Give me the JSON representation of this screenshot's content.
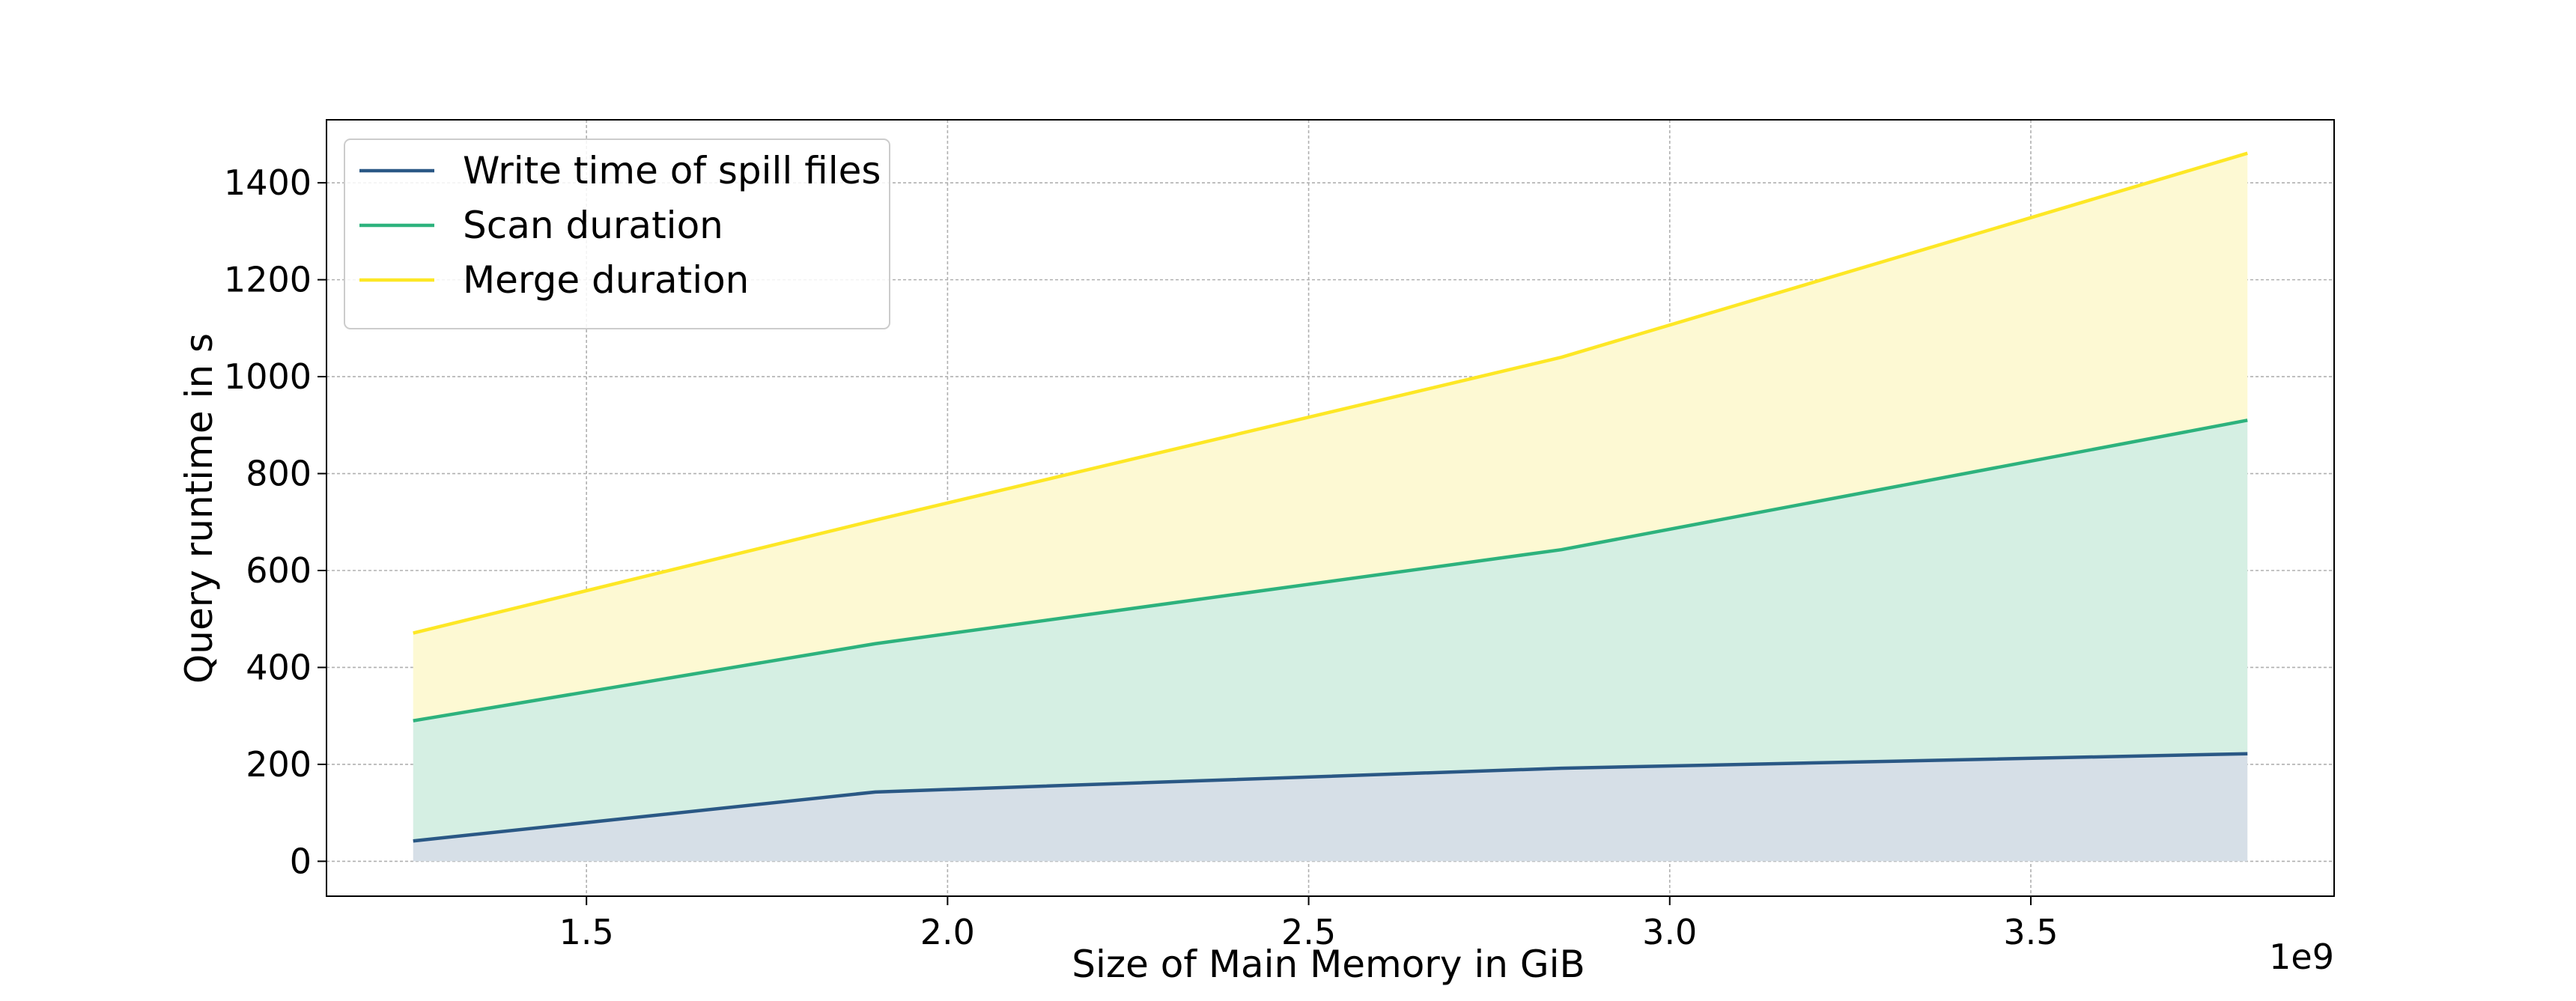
{
  "chart_data": {
    "type": "area",
    "stacked": true,
    "xlabel": "Size of Main Memory in GiB",
    "ylabel": "Query runtime in s",
    "x_offset_label": "1e9",
    "xlim": [
      1.14,
      3.92
    ],
    "ylim": [
      -72,
      1530
    ],
    "xticks": [
      1.5,
      2.0,
      2.5,
      3.0,
      3.5
    ],
    "xtick_labels": [
      "1.5",
      "2.0",
      "2.5",
      "3.0",
      "3.5"
    ],
    "yticks": [
      0,
      200,
      400,
      600,
      800,
      1000,
      1200,
      1400
    ],
    "ytick_labels": [
      "0",
      "200",
      "400",
      "600",
      "800",
      "1000",
      "1200",
      "1400"
    ],
    "grid": true,
    "legend_position": "upper-left",
    "x": [
      1.26,
      1.9,
      2.85,
      3.8
    ],
    "series": [
      {
        "name": "Write time of spill files",
        "cumulative": [
          42,
          143,
          192,
          222
        ],
        "color": "#2a5885",
        "fill": "#d6dfe7"
      },
      {
        "name": "Scan duration",
        "cumulative": [
          290,
          449,
          643,
          910
        ],
        "color": "#2db27d",
        "fill": "#d5efe3"
      },
      {
        "name": "Merge duration",
        "cumulative": [
          471,
          704,
          1040,
          1461
        ],
        "color": "#fde725",
        "fill": "#fdf9d3"
      }
    ]
  }
}
